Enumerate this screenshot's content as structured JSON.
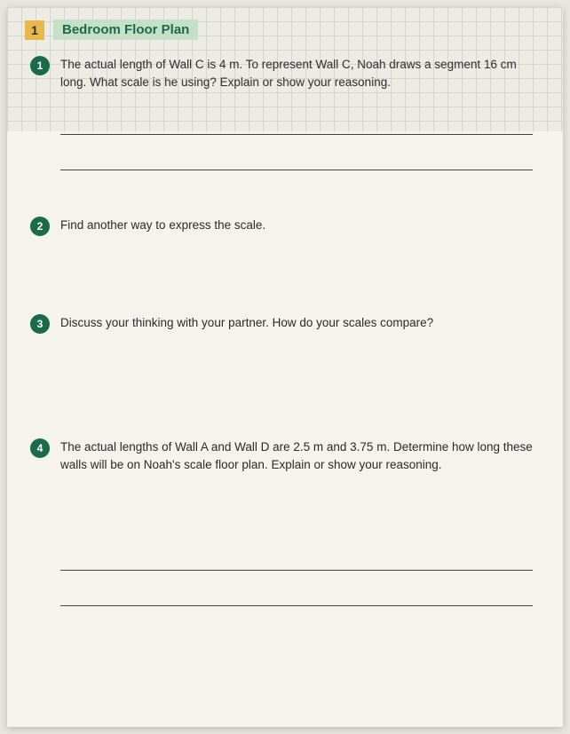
{
  "header": {
    "section_number": "1",
    "section_title": "Bedroom Floor Plan"
  },
  "questions": {
    "q1": {
      "number": "1",
      "text": "The actual length of Wall C is 4 m. To represent Wall C, Noah draws a segment 16 cm long. What scale is he using? Explain or show your reasoning."
    },
    "q2": {
      "number": "2",
      "text": "Find another way to express the scale."
    },
    "q3": {
      "number": "3",
      "text": "Discuss your thinking with your partner. How do your scales compare?"
    },
    "q4": {
      "number": "4",
      "text": "The actual lengths of Wall A and Wall D are 2.5 m and 3.75 m. Determine how long these walls will be on Noah's scale floor plan. Explain or show your reasoning."
    }
  }
}
